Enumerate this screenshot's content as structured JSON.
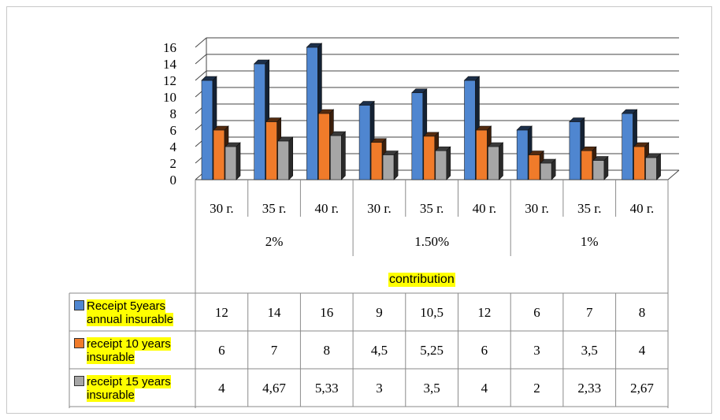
{
  "chart_data": {
    "type": "bar",
    "y_axis": {
      "min": 0,
      "max": 16,
      "ticks": [
        "0",
        "2",
        "4",
        "6",
        "8",
        "10",
        "12",
        "14",
        "16"
      ]
    },
    "categories": [
      "30 г.",
      "35 г.",
      "40 г.",
      "30 г.",
      "35 г.",
      "40 г.",
      "30 г.",
      "35 г.",
      "40 г."
    ],
    "groups": [
      "2%",
      "1.50%",
      "1%"
    ],
    "group_axis_label": "contribution",
    "series": [
      {
        "name": "Receipt 5years annual insurable",
        "name_line1": "Receipt 5years",
        "name_line2": "annual insurable",
        "color": "#4f86d0",
        "values": [
          12,
          14,
          16,
          9,
          10.5,
          12,
          6,
          7,
          8
        ],
        "labels": [
          "12",
          "14",
          "16",
          "9",
          "10,5",
          "12",
          "6",
          "7",
          "8"
        ]
      },
      {
        "name": "receipt 10 years insurable",
        "name_line1": "receipt 10 years",
        "name_line2": "insurable",
        "color": "#f07b2a",
        "values": [
          6,
          7,
          8,
          4.5,
          5.25,
          6,
          3,
          3.5,
          4
        ],
        "labels": [
          "6",
          "7",
          "8",
          "4,5",
          "5,25",
          "6",
          "3",
          "3,5",
          "4"
        ]
      },
      {
        "name": "receipt 15 years insurable",
        "name_line1": "receipt 15 years",
        "name_line2": "insurable",
        "color": "#a6a6a6",
        "values": [
          4,
          4.67,
          5.33,
          3,
          3.5,
          4,
          2,
          2.33,
          2.67
        ],
        "labels": [
          "4",
          "4,67",
          "5,33",
          "3",
          "3,5",
          "4",
          "2",
          "2,33",
          "2,67"
        ]
      }
    ]
  }
}
